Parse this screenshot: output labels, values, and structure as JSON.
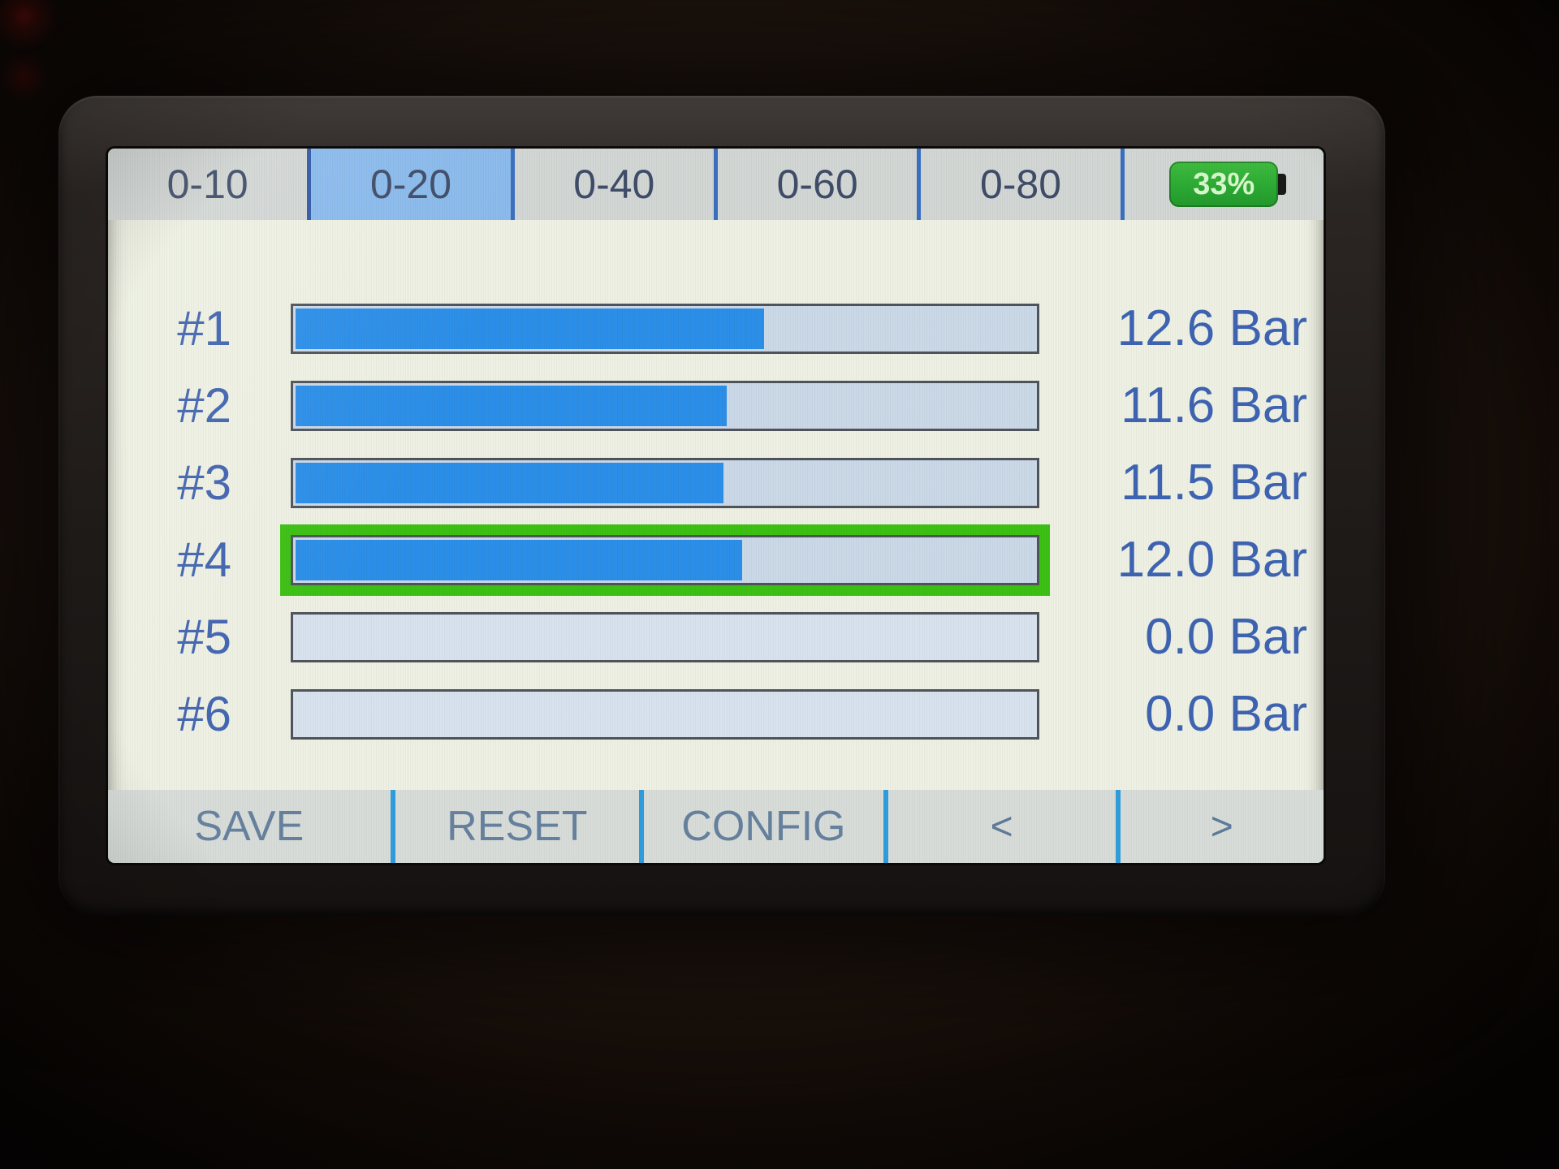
{
  "screen": {
    "tabs": [
      {
        "label": "0-10",
        "active": false
      },
      {
        "label": "0-20",
        "active": true
      },
      {
        "label": "0-40",
        "active": false
      },
      {
        "label": "0-60",
        "active": false
      },
      {
        "label": "0-80",
        "active": false
      }
    ],
    "battery": {
      "percent_label": "33%"
    },
    "channels": [
      {
        "label": "#1",
        "value": "12.6 Bar",
        "fill_pct": 63,
        "selected": false,
        "empty": false
      },
      {
        "label": "#2",
        "value": "11.6 Bar",
        "fill_pct": 58,
        "selected": false,
        "empty": false
      },
      {
        "label": "#3",
        "value": "11.5 Bar",
        "fill_pct": 57.5,
        "selected": false,
        "empty": false
      },
      {
        "label": "#4",
        "value": "12.0 Bar",
        "fill_pct": 60,
        "selected": true,
        "empty": false
      },
      {
        "label": "#5",
        "value": "0.0 Bar",
        "fill_pct": 0,
        "selected": false,
        "empty": true
      },
      {
        "label": "#6",
        "value": "0.0 Bar",
        "fill_pct": 0,
        "selected": false,
        "empty": true
      }
    ],
    "menu": [
      {
        "label": "SAVE"
      },
      {
        "label": "RESET"
      },
      {
        "label": "CONFIG"
      },
      {
        "label": "<"
      },
      {
        "label": ">"
      }
    ],
    "colors": {
      "bar_fill_blue": "#2b8ee8",
      "selected_green": "#3cc013",
      "battery_green": "#2aa832",
      "active_tab_blue": "#8abaec",
      "text_blue": "#3d63b2",
      "menu_divider_blue": "#2f9ddb"
    }
  }
}
